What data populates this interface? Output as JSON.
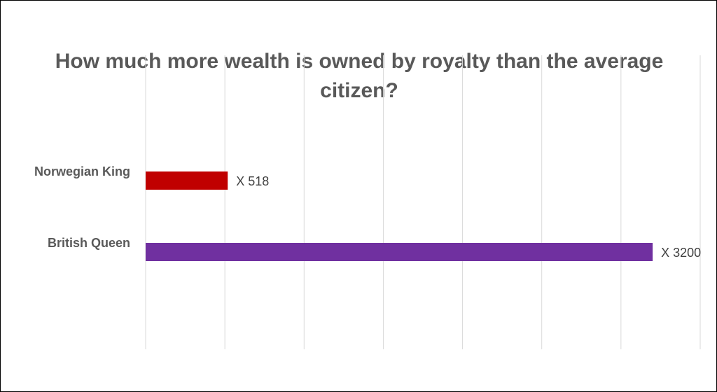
{
  "chart_data": {
    "type": "bar",
    "orientation": "horizontal",
    "title": "How much more wealth is owned by royalty than the average citizen?",
    "categories": [
      "Norwegian King",
      "British Queen"
    ],
    "values": [
      518,
      3200
    ],
    "data_labels": [
      "X  518",
      "X 3200"
    ],
    "colors": [
      "#c00000",
      "#7030a0"
    ],
    "xlim": [
      0,
      3500
    ],
    "grid": true,
    "gridline_color": "#d9d9d9",
    "legend": "none",
    "xlabel": "",
    "ylabel": ""
  }
}
